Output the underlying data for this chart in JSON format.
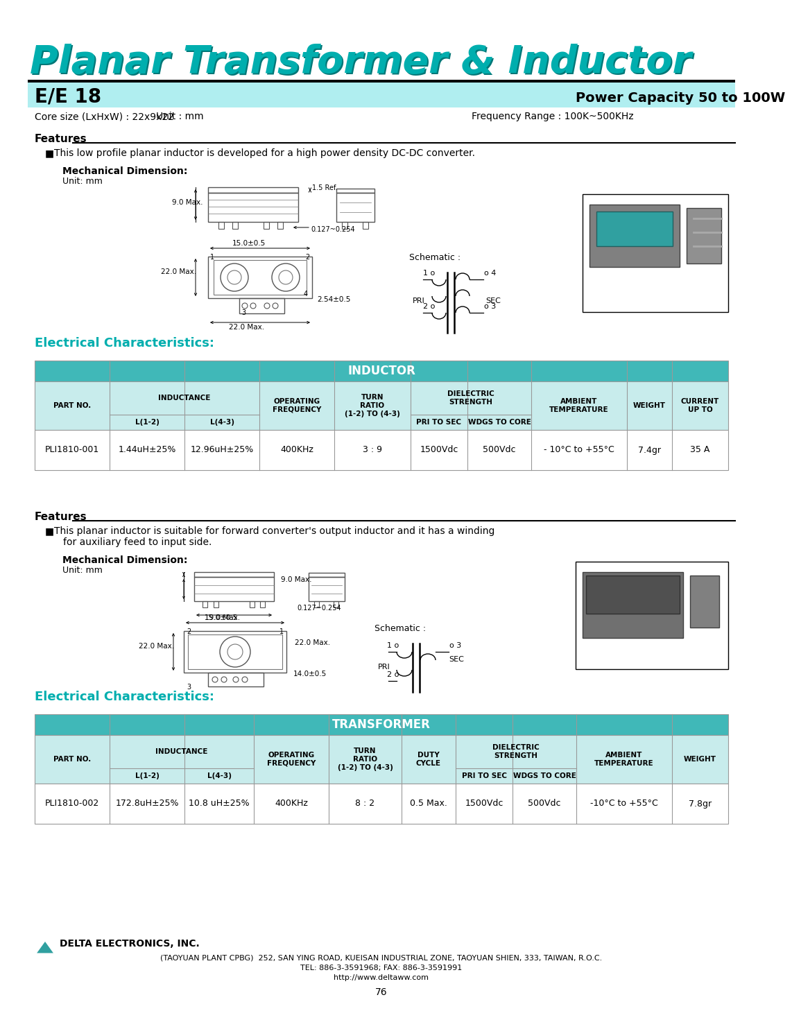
{
  "page_bg": "#ffffff",
  "title": "Planar Transformer & Inductor",
  "title_color": "#00AEAE",
  "title_shadow_color": "#007777",
  "header_bg": "#ADD8E6",
  "model": "E/E 18",
  "power_capacity": "Power Capacity 50 to 100W",
  "core_size": "Core size (LxHxW) : 22x9x22",
  "unit_mm": "Unit : mm",
  "freq_range": "Frequency Range : 100K~500KHz",
  "features1_title": "Features",
  "features1_text": "This low profile planar inductor is developed for a high power density DC-DC converter.",
  "mech_dim_title": "Mechanical Dimension:",
  "mech_dim_unit": "Unit: mm",
  "elec_char_title": "Electrical Characteristics:",
  "elec_char_color": "#00AEAE",
  "table1_header": "INDUCTOR",
  "table1_header_bg": "#40B8B8",
  "table1_data": [
    [
      "PLI1810-001",
      "1.44uH±25%",
      "12.96uH±25%",
      "400KHz",
      "3 : 9",
      "1500Vdc",
      "500Vdc",
      "- 10°C to +55°C",
      "7.4gr",
      "35 A"
    ]
  ],
  "features2_text1": "This planar inductor is suitable for forward converter's output inductor and it has a winding",
  "features2_text2": "for auxiliary feed to input side.",
  "table2_header": "TRANSFORMER",
  "table2_header_bg": "#40B8B8",
  "table2_data": [
    [
      "PLI1810-002",
      "172.8uH±25%",
      "10.8 uH±25%",
      "400KHz",
      "8 : 2",
      "0.5 Max.",
      "1500Vdc",
      "500Vdc",
      "-10°C to +55°C",
      "7.8gr"
    ]
  ],
  "company_name": "DELTA ELECTRONICS, INC.",
  "company_detail": "(TAOYUAN PLANT CPBG)  252, SAN YING ROAD, KUEISAN INDUSTRIAL ZONE, TAOYUAN SHIEN, 333, TAIWAN, R.O.C.",
  "company_tel": "TEL: 886-3-3591968; FAX: 886-3-3591991",
  "company_web": "http://www.deltaww.com",
  "page_num": "76",
  "teal_color": "#40B8B8",
  "border_color": "#999999",
  "header_row_bg": "#C8ECEC"
}
